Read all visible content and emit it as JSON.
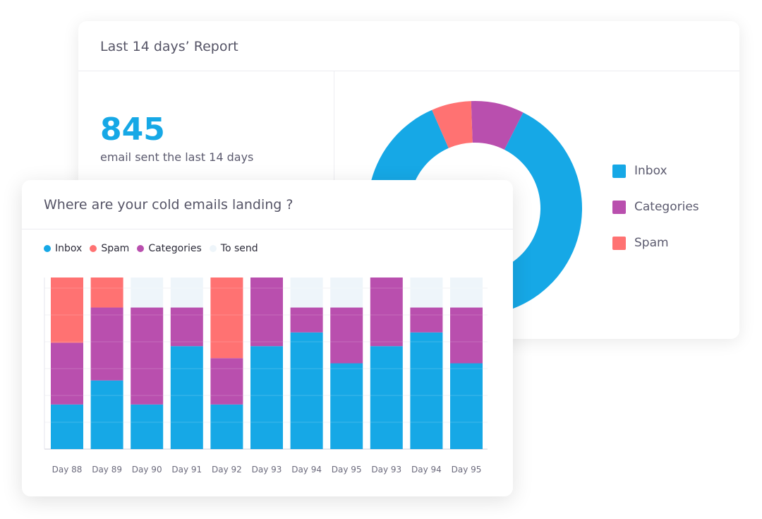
{
  "report": {
    "title": "Last 14 days’ Report",
    "total": "845",
    "total_caption": "email sent the last 14 days"
  },
  "donut": {
    "segments": [
      {
        "name": "Categories",
        "value": 8,
        "color": "#b94fae"
      },
      {
        "name": "Inbox",
        "value": 86,
        "color": "#16a8e6"
      },
      {
        "name": "Spam",
        "value": 6,
        "color": "#ff7272"
      }
    ],
    "legend": [
      {
        "label": "Inbox",
        "color": "#16a8e6"
      },
      {
        "label": "Categories",
        "color": "#b94fae"
      },
      {
        "label": "Spam",
        "color": "#ff7272"
      }
    ]
  },
  "landing": {
    "title": "Where are your cold emails landing ?"
  },
  "chart_data": {
    "type": "bar",
    "stacked": true,
    "grid": true,
    "legend_position": "top-left",
    "ylim": [
      0,
      100
    ],
    "categories": [
      "Day 88",
      "Day 89",
      "Day 90",
      "Day 91",
      "Day 92",
      "Day 93",
      "Day 94",
      "Day 95",
      "Day 93",
      "Day 94",
      "Day 95"
    ],
    "series": [
      {
        "name": "Inbox",
        "color": "#16a8e6",
        "values": [
          26,
          40,
          26,
          60,
          26,
          60,
          68,
          50,
          60,
          68,
          50
        ]
      },
      {
        "name": "Categories",
        "color": "#b94fae",
        "values": [
          36,
          42.5,
          56.5,
          22.5,
          27,
          40,
          14.5,
          32.5,
          40,
          14.5,
          32.5
        ]
      },
      {
        "name": "Spam",
        "color": "#ff7272",
        "values": [
          38,
          17.5,
          0,
          0,
          47,
          0,
          0,
          0,
          0,
          0,
          0
        ]
      },
      {
        "name": "To send",
        "color": "#eef5fa",
        "values": [
          0,
          0,
          17.5,
          17.5,
          0,
          0,
          17.5,
          17.5,
          0,
          17.5,
          17.5
        ]
      }
    ],
    "legend_order": [
      {
        "label": "Inbox",
        "color": "#16a8e6"
      },
      {
        "label": "Spam",
        "color": "#ff7272"
      },
      {
        "label": "Categories",
        "color": "#b94fae"
      },
      {
        "label": "To send",
        "color": "#eef5fa"
      }
    ]
  }
}
